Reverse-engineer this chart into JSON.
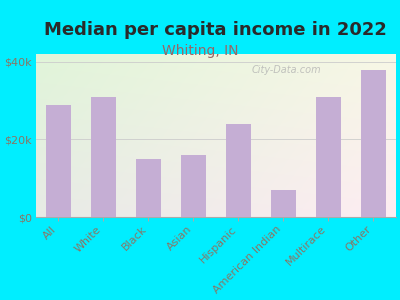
{
  "title": "Median per capita income in 2022",
  "subtitle": "Whiting, IN",
  "categories": [
    "All",
    "White",
    "Black",
    "Asian",
    "Hispanic",
    "American Indian",
    "Multirace",
    "Other"
  ],
  "values": [
    29000,
    31000,
    15000,
    16000,
    24000,
    7000,
    31000,
    38000
  ],
  "bar_color": "#c5aed4",
  "background_outer": "#00eeff",
  "title_color": "#2a2a2a",
  "subtitle_color": "#996666",
  "tick_label_color": "#887766",
  "ylim": [
    0,
    42000
  ],
  "yticks": [
    0,
    20000,
    40000
  ],
  "ytick_labels": [
    "$0",
    "$20k",
    "$40k"
  ],
  "watermark": "City-Data.com",
  "title_fontsize": 13,
  "subtitle_fontsize": 10,
  "tick_fontsize": 8
}
